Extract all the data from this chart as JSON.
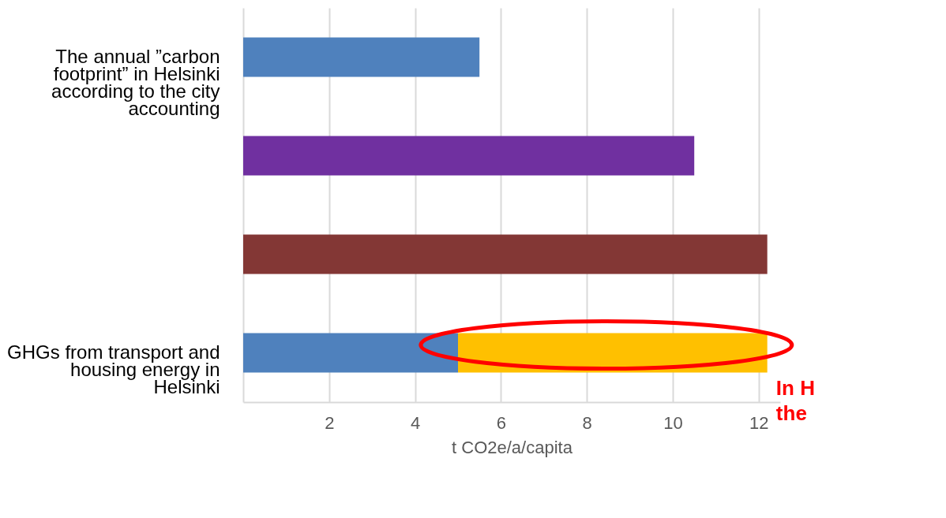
{
  "chart_data": {
    "type": "bar",
    "orientation": "horizontal",
    "stacked": true,
    "categories": [
      "The annual ”carbon footprint” in Helsinki according to the city accounting",
      null,
      null,
      "GHGs from transport and housing energy in Helsinki"
    ],
    "series": [
      {
        "colors": [
          "#4f81bd",
          "#7030a0",
          "#833735",
          "#4f81bd"
        ],
        "values": [
          5.5,
          10.5,
          12.2,
          5.0
        ]
      },
      {
        "color": "#ffc000",
        "values": [
          null,
          null,
          null,
          7.2
        ]
      }
    ],
    "xlabel": "t CO2e/a/capita",
    "xlim": [
      0,
      12.5
    ],
    "xticks": [
      2,
      4,
      6,
      8,
      10,
      12
    ],
    "grid": "x",
    "annotations": [
      "In H",
      "the"
    ]
  }
}
